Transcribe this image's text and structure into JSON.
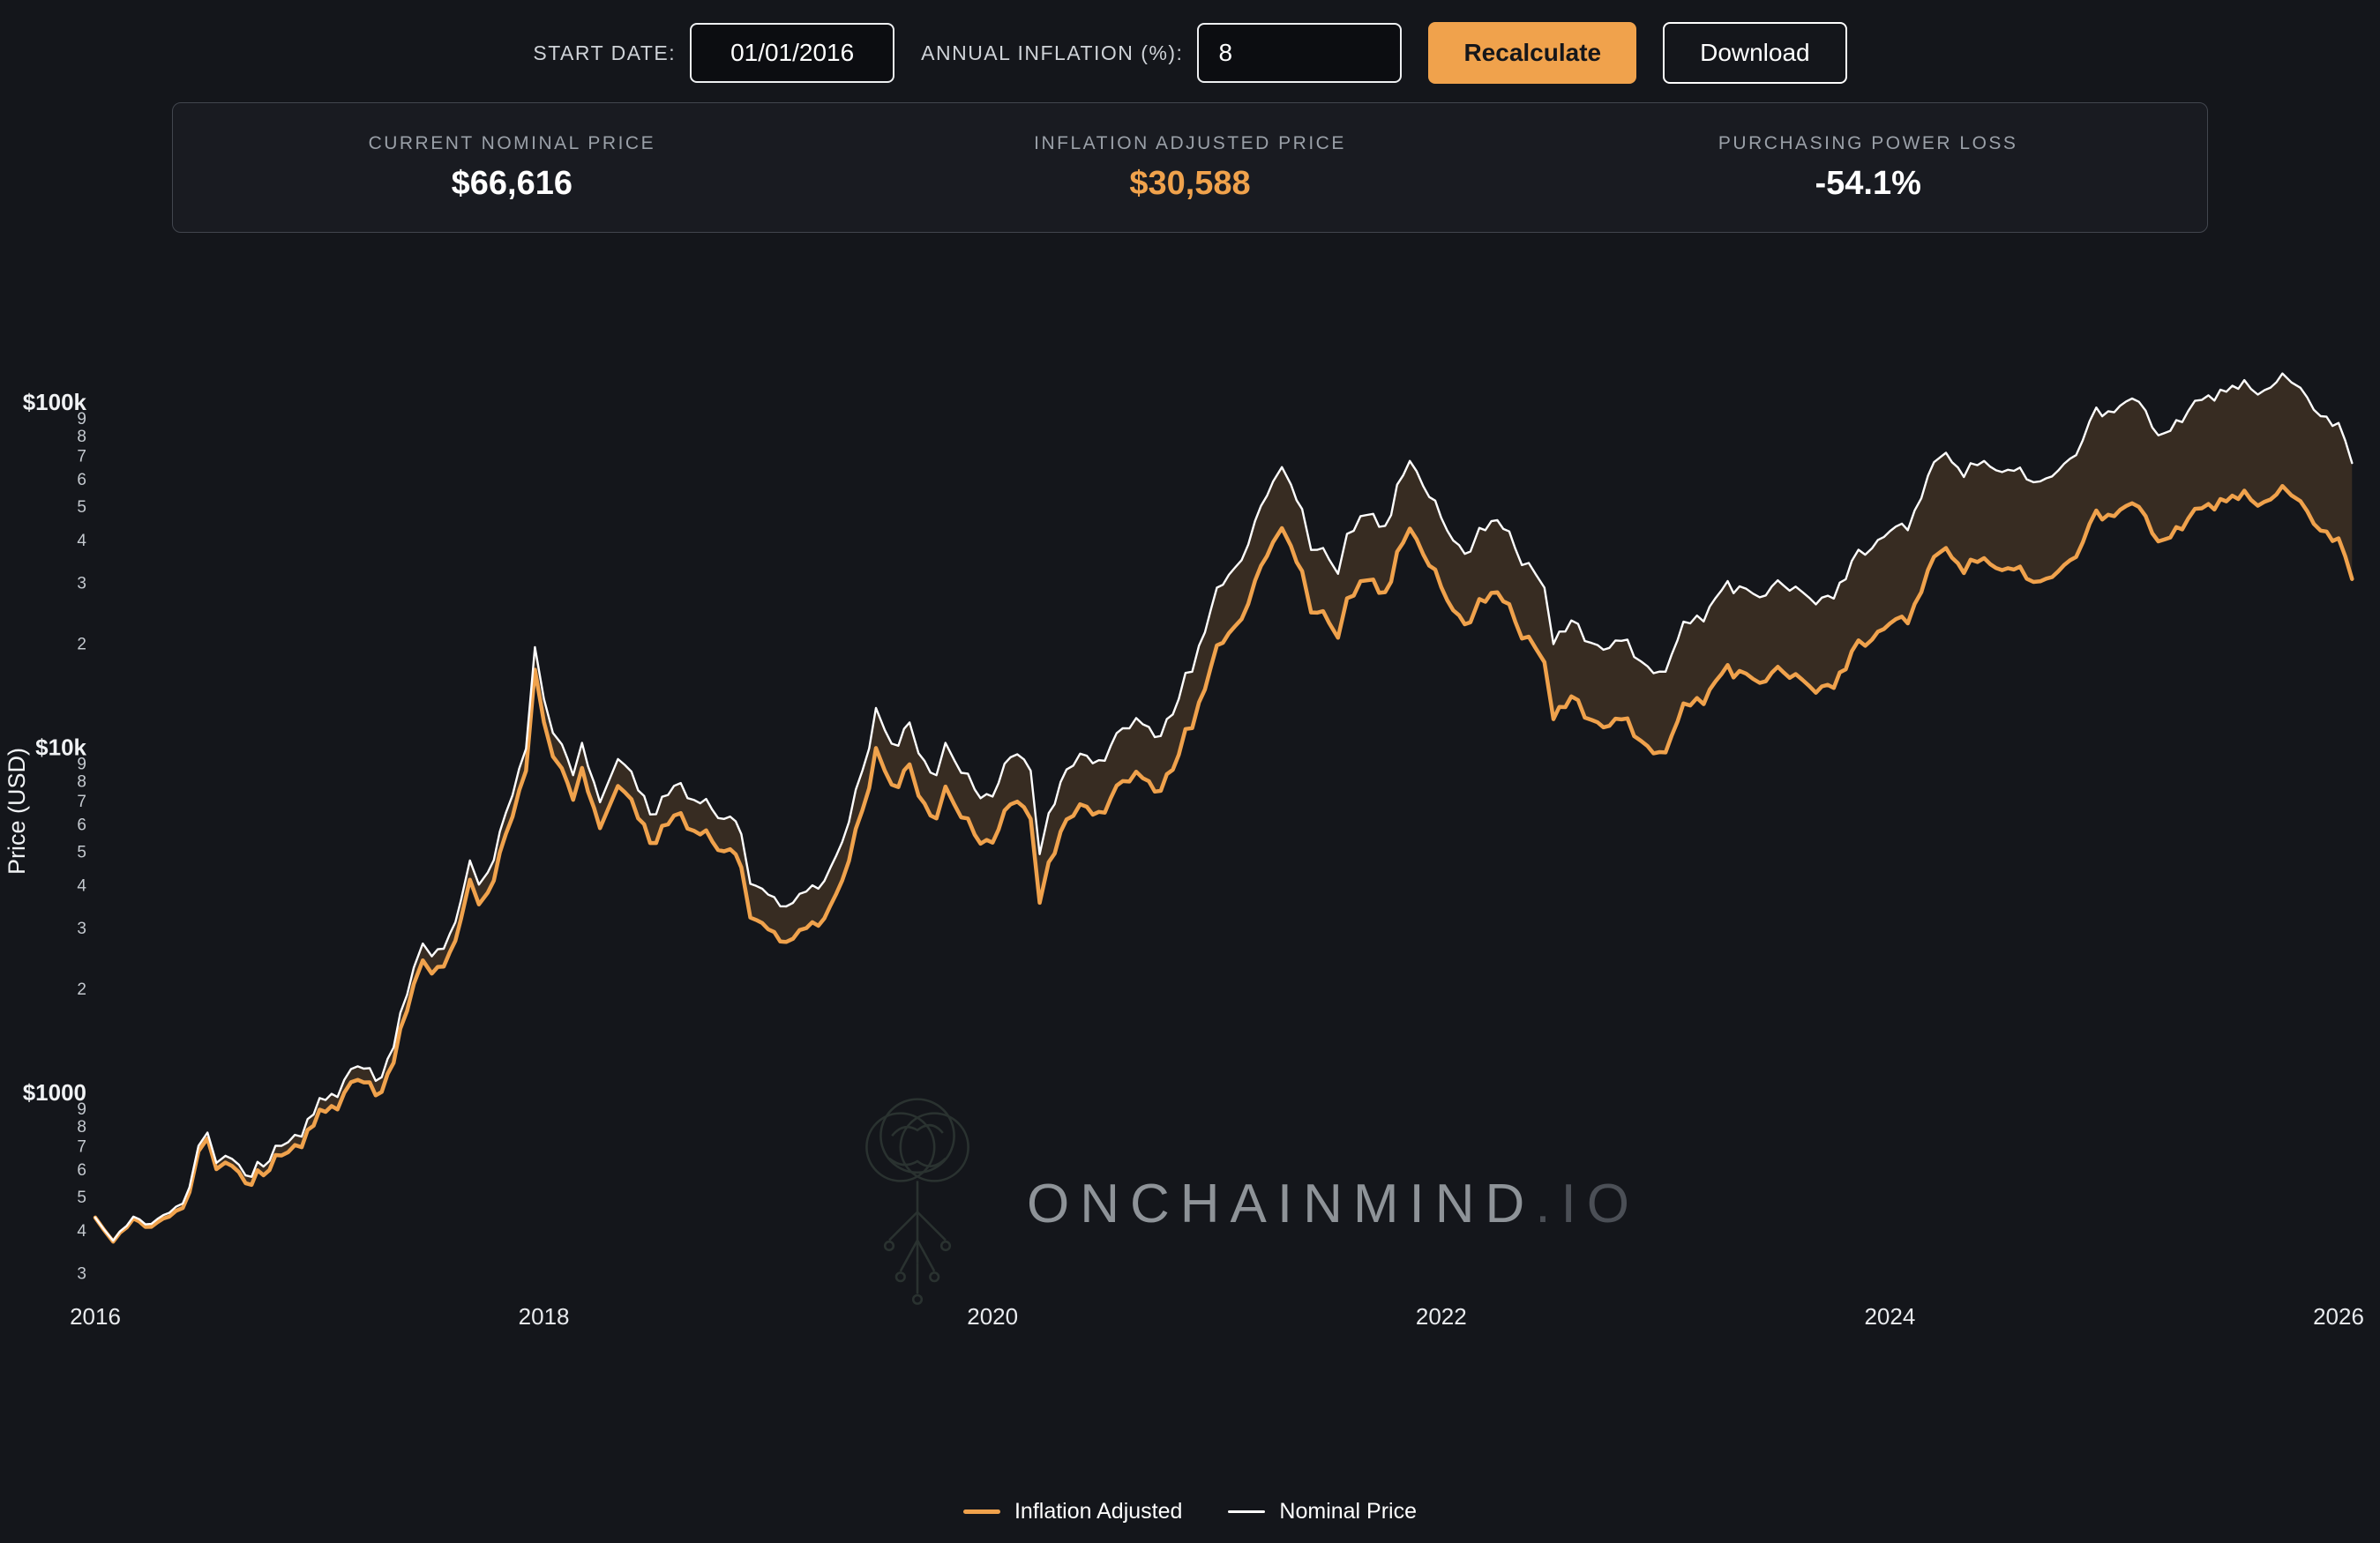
{
  "toolbar": {
    "start_date_label": "START DATE:",
    "start_date_value": "01/01/2016",
    "inflation_label": "ANNUAL INFLATION (%):",
    "inflation_value": "8",
    "recalculate_label": "Recalculate",
    "download_label": "Download"
  },
  "stats": {
    "items": [
      {
        "label": "CURRENT NOMINAL PRICE",
        "value": "$66,616",
        "color": "#ffffff"
      },
      {
        "label": "INFLATION ADJUSTED PRICE",
        "value": "$30,588",
        "color": "#f0a24c"
      },
      {
        "label": "PURCHASING POWER LOSS",
        "value": "-54.1%",
        "color": "#ffffff"
      }
    ]
  },
  "watermark": {
    "main": "ONCHAINMIND",
    "suffix": ".IO"
  },
  "legend": {
    "items": [
      {
        "label": "Inflation Adjusted",
        "color": "#f0a24c",
        "thickness": 5
      },
      {
        "label": "Nominal Price",
        "color": "#ffffff",
        "thickness": 3
      }
    ]
  },
  "chart_data": {
    "type": "line",
    "title": "",
    "xlabel": "",
    "ylabel": "Price (USD)",
    "yscale": "log",
    "grid": false,
    "legend_position": "bottom-center",
    "xlim": [
      2016,
      2026.1
    ],
    "ylim": [
      300,
      130000
    ],
    "x_ticks": [
      "2016",
      "2018",
      "2020",
      "2022",
      "2024",
      "2026"
    ],
    "y_ticks": [
      {
        "v": 100000,
        "label": "$100k",
        "major": true
      },
      {
        "v": 90000,
        "label": "9"
      },
      {
        "v": 80000,
        "label": "8"
      },
      {
        "v": 70000,
        "label": "7"
      },
      {
        "v": 60000,
        "label": "6"
      },
      {
        "v": 50000,
        "label": "5"
      },
      {
        "v": 40000,
        "label": "4"
      },
      {
        "v": 30000,
        "label": "3"
      },
      {
        "v": 20000,
        "label": "2"
      },
      {
        "v": 10000,
        "label": "$10k",
        "major": true
      },
      {
        "v": 9000,
        "label": "9"
      },
      {
        "v": 8000,
        "label": "8"
      },
      {
        "v": 7000,
        "label": "7"
      },
      {
        "v": 6000,
        "label": "6"
      },
      {
        "v": 5000,
        "label": "5"
      },
      {
        "v": 4000,
        "label": "4"
      },
      {
        "v": 3000,
        "label": "3"
      },
      {
        "v": 2000,
        "label": "2"
      },
      {
        "v": 1000,
        "label": "$1000",
        "major": true
      },
      {
        "v": 900,
        "label": "9"
      },
      {
        "v": 800,
        "label": "8"
      },
      {
        "v": 700,
        "label": "7"
      },
      {
        "v": 600,
        "label": "6"
      },
      {
        "v": 500,
        "label": "5"
      },
      {
        "v": 400,
        "label": "4"
      },
      {
        "v": 300,
        "label": "3"
      }
    ],
    "inflation_annual_pct": 8,
    "inflation_base_year": 2016,
    "series": [
      {
        "name": "Nominal Price",
        "color": "#ffffff",
        "points": [
          [
            2016.0,
            434
          ],
          [
            2016.04,
            400
          ],
          [
            2016.08,
            372
          ],
          [
            2016.17,
            437
          ],
          [
            2016.25,
            416
          ],
          [
            2016.33,
            448
          ],
          [
            2016.42,
            531
          ],
          [
            2016.46,
            700
          ],
          [
            2016.5,
            765
          ],
          [
            2016.54,
            625
          ],
          [
            2016.58,
            655
          ],
          [
            2016.67,
            575
          ],
          [
            2016.75,
            610
          ],
          [
            2016.83,
            700
          ],
          [
            2016.92,
            745
          ],
          [
            2017.0,
            963
          ],
          [
            2017.08,
            970
          ],
          [
            2017.17,
            1190
          ],
          [
            2017.25,
            1080
          ],
          [
            2017.33,
            1350
          ],
          [
            2017.42,
            2300
          ],
          [
            2017.46,
            2700
          ],
          [
            2017.5,
            2480
          ],
          [
            2017.58,
            2875
          ],
          [
            2017.63,
            3600
          ],
          [
            2017.67,
            4700
          ],
          [
            2017.71,
            4000
          ],
          [
            2017.75,
            4340
          ],
          [
            2017.83,
            6450
          ],
          [
            2017.92,
            9900
          ],
          [
            2017.96,
            19500
          ],
          [
            2018.0,
            13800
          ],
          [
            2018.04,
            11000
          ],
          [
            2018.08,
            10200
          ],
          [
            2018.13,
            8300
          ],
          [
            2018.17,
            10300
          ],
          [
            2018.25,
            6930
          ],
          [
            2018.29,
            8000
          ],
          [
            2018.33,
            9240
          ],
          [
            2018.42,
            7500
          ],
          [
            2018.5,
            6400
          ],
          [
            2018.58,
            7730
          ],
          [
            2018.67,
            7030
          ],
          [
            2018.75,
            6600
          ],
          [
            2018.83,
            6300
          ],
          [
            2018.88,
            5600
          ],
          [
            2018.92,
            4020
          ],
          [
            2019.0,
            3740
          ],
          [
            2019.08,
            3460
          ],
          [
            2019.17,
            3820
          ],
          [
            2019.25,
            4100
          ],
          [
            2019.33,
            5320
          ],
          [
            2019.42,
            8560
          ],
          [
            2019.48,
            13000
          ],
          [
            2019.52,
            11200
          ],
          [
            2019.58,
            10100
          ],
          [
            2019.63,
            11800
          ],
          [
            2019.67,
            9600
          ],
          [
            2019.75,
            8300
          ],
          [
            2019.79,
            10300
          ],
          [
            2019.83,
            9150
          ],
          [
            2019.92,
            7550
          ],
          [
            2020.0,
            7200
          ],
          [
            2020.08,
            9350
          ],
          [
            2020.17,
            8550
          ],
          [
            2020.21,
            4900
          ],
          [
            2020.25,
            6440
          ],
          [
            2020.33,
            8620
          ],
          [
            2020.42,
            9450
          ],
          [
            2020.5,
            9140
          ],
          [
            2020.58,
            11350
          ],
          [
            2020.67,
            11650
          ],
          [
            2020.75,
            10780
          ],
          [
            2020.83,
            13800
          ],
          [
            2020.92,
            19700
          ],
          [
            2021.0,
            29000
          ],
          [
            2021.08,
            33100
          ],
          [
            2021.17,
            45200
          ],
          [
            2021.25,
            58800
          ],
          [
            2021.29,
            64800
          ],
          [
            2021.33,
            57750
          ],
          [
            2021.38,
            49000
          ],
          [
            2021.42,
            37300
          ],
          [
            2021.5,
            35000
          ],
          [
            2021.54,
            31800
          ],
          [
            2021.58,
            41500
          ],
          [
            2021.67,
            47100
          ],
          [
            2021.75,
            43800
          ],
          [
            2021.83,
            61300
          ],
          [
            2021.86,
            67500
          ],
          [
            2021.92,
            57000
          ],
          [
            2022.0,
            46200
          ],
          [
            2022.08,
            38500
          ],
          [
            2022.13,
            36900
          ],
          [
            2022.17,
            43200
          ],
          [
            2022.25,
            45500
          ],
          [
            2022.33,
            37650
          ],
          [
            2022.42,
            31800
          ],
          [
            2022.46,
            29000
          ],
          [
            2022.5,
            19900
          ],
          [
            2022.58,
            23300
          ],
          [
            2022.67,
            20050
          ],
          [
            2022.75,
            19400
          ],
          [
            2022.83,
            20500
          ],
          [
            2022.92,
            17150
          ],
          [
            2023.0,
            16550
          ],
          [
            2023.08,
            23100
          ],
          [
            2023.17,
            23150
          ],
          [
            2023.25,
            28500
          ],
          [
            2023.33,
            29250
          ],
          [
            2023.42,
            27200
          ],
          [
            2023.5,
            30450
          ],
          [
            2023.58,
            29200
          ],
          [
            2023.67,
            25950
          ],
          [
            2023.75,
            26950
          ],
          [
            2023.83,
            34650
          ],
          [
            2023.92,
            37700
          ],
          [
            2024.0,
            42250
          ],
          [
            2024.08,
            42550
          ],
          [
            2024.17,
            61200
          ],
          [
            2024.25,
            71300
          ],
          [
            2024.33,
            60650
          ],
          [
            2024.42,
            67500
          ],
          [
            2024.5,
            62700
          ],
          [
            2024.58,
            64600
          ],
          [
            2024.67,
            58950
          ],
          [
            2024.75,
            63300
          ],
          [
            2024.83,
            70200
          ],
          [
            2024.92,
            96400
          ],
          [
            2025.0,
            93400
          ],
          [
            2025.08,
            102400
          ],
          [
            2025.17,
            84350
          ],
          [
            2025.25,
            82550
          ],
          [
            2025.33,
            94200
          ],
          [
            2025.42,
            104600
          ],
          [
            2025.5,
            107100
          ],
          [
            2025.58,
            115750
          ],
          [
            2025.67,
            108250
          ],
          [
            2025.75,
            121000
          ],
          [
            2025.79,
            114000
          ],
          [
            2025.83,
            110000
          ],
          [
            2025.92,
            91000
          ],
          [
            2026.0,
            87000
          ],
          [
            2026.06,
            66616
          ]
        ]
      },
      {
        "name": "Inflation Adjusted",
        "color": "#f0a24c",
        "derived": "nominal / (1 + inflation_annual_pct/100)^(x - inflation_base_year)",
        "last_value": 30588
      }
    ],
    "fill_between_color": "rgba(240,162,76,0.16)"
  }
}
